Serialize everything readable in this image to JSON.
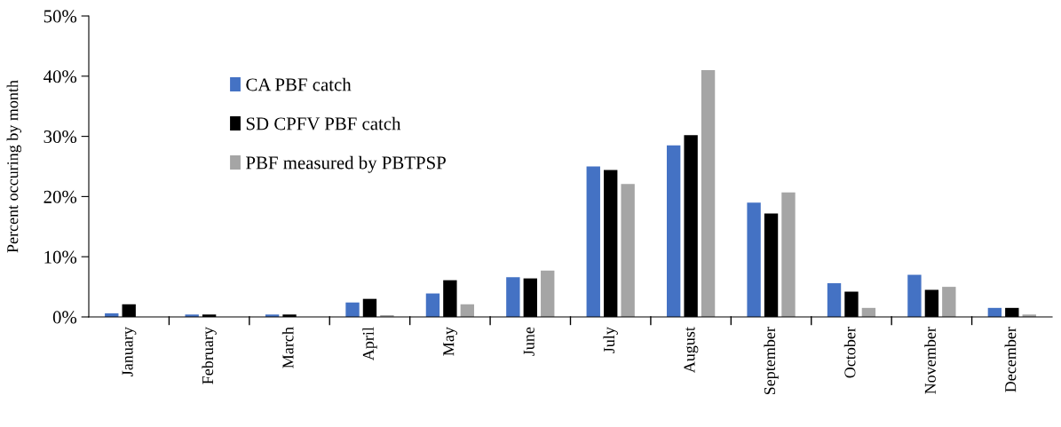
{
  "chart_data": {
    "type": "bar",
    "ylabel": "Percent occuring by month",
    "categories": [
      "January",
      "February",
      "March",
      "April",
      "May",
      "June",
      "July",
      "August",
      "September",
      "October",
      "November",
      "December"
    ],
    "series": [
      {
        "name": "CA PBF catch",
        "color": "#4472c4",
        "values": [
          0.6,
          0.4,
          0.4,
          2.4,
          3.9,
          6.6,
          25.0,
          28.5,
          19.0,
          5.6,
          7.0,
          1.5
        ]
      },
      {
        "name": "SD CPFV PBF catch",
        "color": "#000000",
        "values": [
          2.1,
          0.4,
          0.4,
          3.0,
          6.1,
          6.4,
          24.4,
          30.2,
          17.2,
          4.2,
          4.5,
          1.5
        ]
      },
      {
        "name": "PBF measured by PBTPSP",
        "color": "#a5a5a5",
        "values": [
          0,
          0,
          0,
          0.3,
          2.1,
          7.7,
          22.1,
          41.0,
          20.7,
          1.5,
          5.0,
          0.4
        ]
      }
    ],
    "ylim": [
      0,
      50
    ],
    "yticks": [
      {
        "value": 0,
        "label": "0%"
      },
      {
        "value": 10,
        "label": "10%"
      },
      {
        "value": 20,
        "label": "20%"
      },
      {
        "value": 30,
        "label": "30%"
      },
      {
        "value": 40,
        "label": "40%"
      },
      {
        "value": 50,
        "label": "50%"
      }
    ],
    "grid": false,
    "legend": "top left"
  }
}
